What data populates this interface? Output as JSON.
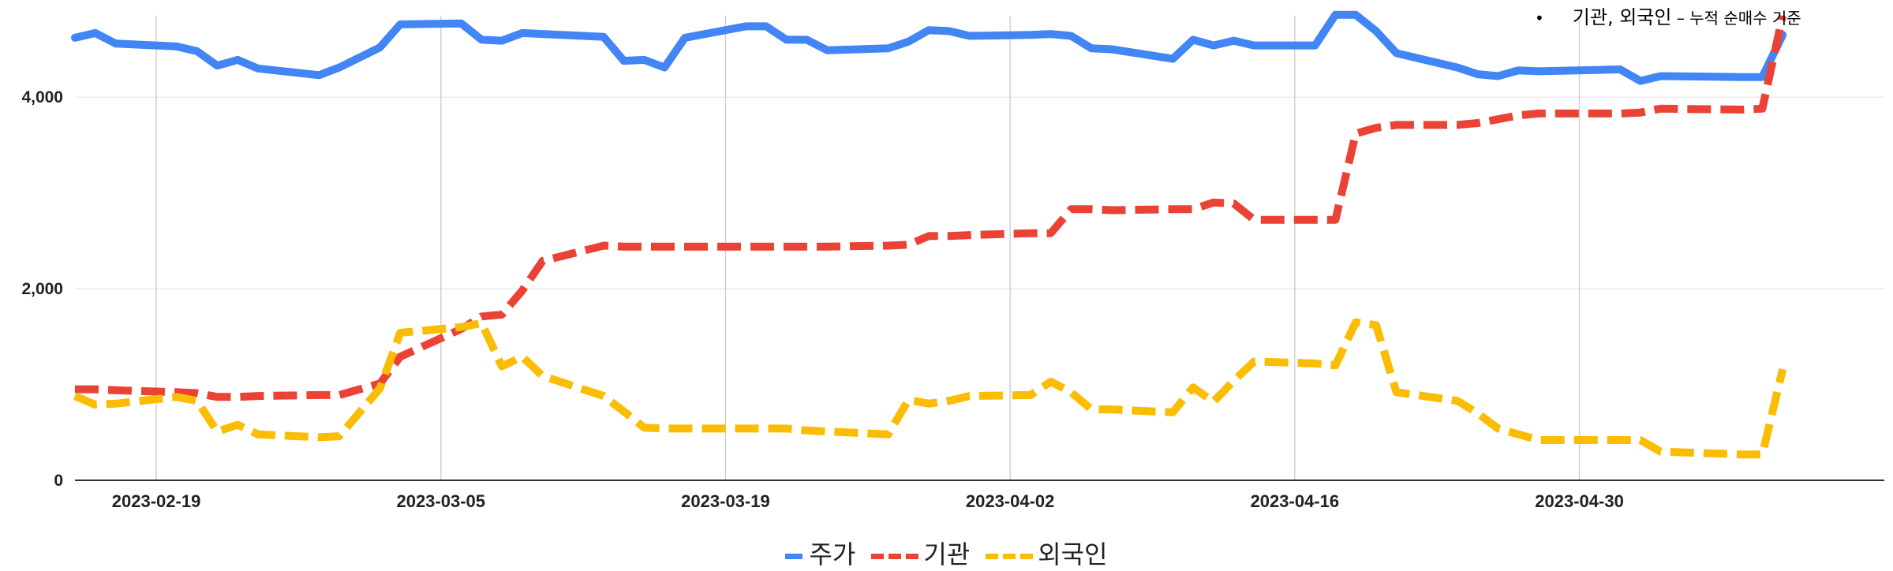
{
  "annotation": {
    "bullet": "•",
    "label": "기관, 외국인",
    "dash": " – ",
    "detail": "누적 순매수 기준"
  },
  "chart_data": {
    "type": "line",
    "x_axis_type": "date",
    "xlim": [
      "2023-02-15",
      "2023-05-15"
    ],
    "x_ticks": [
      "2023-02-19",
      "2023-03-05",
      "2023-03-19",
      "2023-04-02",
      "2023-04-16",
      "2023-04-30"
    ],
    "ylim": [
      0,
      4850
    ],
    "y_ticks": [
      0,
      2000,
      4000
    ],
    "y_tick_labels": [
      "0",
      "2,000",
      "4,000"
    ],
    "grid": true,
    "legend_position": "bottom",
    "x": [
      "2023-02-15",
      "2023-02-16",
      "2023-02-17",
      "2023-02-20",
      "2023-02-21",
      "2023-02-22",
      "2023-02-23",
      "2023-02-24",
      "2023-02-27",
      "2023-02-28",
      "2023-03-02",
      "2023-03-03",
      "2023-03-06",
      "2023-03-07",
      "2023-03-08",
      "2023-03-09",
      "2023-03-10",
      "2023-03-13",
      "2023-03-14",
      "2023-03-15",
      "2023-03-16",
      "2023-03-17",
      "2023-03-20",
      "2023-03-21",
      "2023-03-22",
      "2023-03-23",
      "2023-03-24",
      "2023-03-27",
      "2023-03-28",
      "2023-03-29",
      "2023-03-30",
      "2023-03-31",
      "2023-04-03",
      "2023-04-04",
      "2023-04-05",
      "2023-04-06",
      "2023-04-07",
      "2023-04-10",
      "2023-04-11",
      "2023-04-12",
      "2023-04-13",
      "2023-04-14",
      "2023-04-17",
      "2023-04-18",
      "2023-04-19",
      "2023-04-20",
      "2023-04-21",
      "2023-04-24",
      "2023-04-25",
      "2023-04-26",
      "2023-04-27",
      "2023-04-28",
      "2023-05-02",
      "2023-05-03",
      "2023-05-04",
      "2023-05-08",
      "2023-05-09",
      "2023-05-10"
    ],
    "series": [
      {
        "name": "주가",
        "color": "#4285f4",
        "style": "solid",
        "values": [
          4620,
          4670,
          4560,
          4530,
          4480,
          4330,
          4390,
          4300,
          4230,
          4310,
          4520,
          4760,
          4770,
          4600,
          4590,
          4670,
          4660,
          4630,
          4380,
          4390,
          4310,
          4620,
          4740,
          4740,
          4600,
          4600,
          4490,
          4510,
          4580,
          4700,
          4690,
          4640,
          4650,
          4660,
          4640,
          4510,
          4500,
          4400,
          4600,
          4540,
          4590,
          4540,
          4540,
          4860,
          4860,
          4690,
          4460,
          4310,
          4240,
          4220,
          4280,
          4270,
          4290,
          4170,
          4220,
          4210,
          4210,
          4650
        ]
      },
      {
        "name": "기관",
        "color": "#ea4335",
        "style": "dashed",
        "values": [
          950,
          950,
          940,
          920,
          910,
          870,
          870,
          880,
          890,
          890,
          1010,
          1290,
          1580,
          1710,
          1730,
          1980,
          2290,
          2450,
          2440,
          2440,
          2440,
          2440,
          2440,
          2440,
          2440,
          2440,
          2440,
          2450,
          2460,
          2550,
          2550,
          2560,
          2580,
          2580,
          2830,
          2830,
          2820,
          2830,
          2830,
          2900,
          2890,
          2720,
          2720,
          2720,
          3620,
          3680,
          3710,
          3710,
          3730,
          3770,
          3810,
          3830,
          3830,
          3840,
          3880,
          3870,
          3880,
          4850
        ]
      },
      {
        "name": "외국인",
        "color": "#fbbc04",
        "style": "dashed",
        "values": [
          880,
          790,
          800,
          870,
          830,
          510,
          580,
          480,
          450,
          460,
          960,
          1540,
          1600,
          1640,
          1190,
          1290,
          1090,
          880,
          720,
          550,
          540,
          540,
          540,
          540,
          540,
          520,
          510,
          480,
          840,
          800,
          830,
          880,
          890,
          1030,
          920,
          740,
          740,
          710,
          970,
          820,
          1040,
          1240,
          1220,
          1200,
          1650,
          1620,
          920,
          830,
          700,
          540,
          480,
          420,
          420,
          420,
          300,
          270,
          270,
          1160
        ]
      }
    ]
  }
}
